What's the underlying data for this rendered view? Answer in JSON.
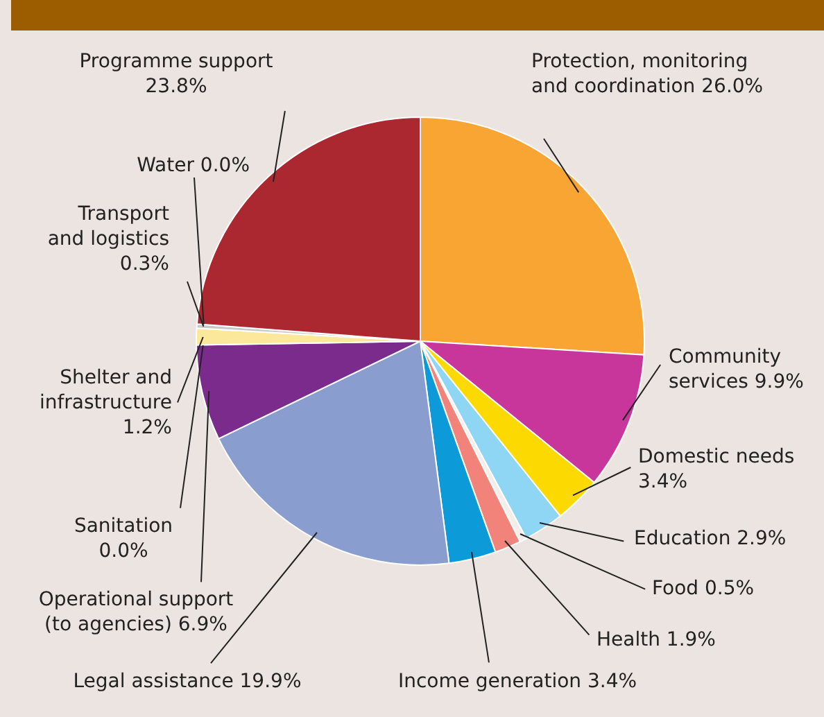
{
  "chart_data": {
    "type": "pie",
    "categories": [
      "Protection, monitoring and coordination",
      "Community services",
      "Domestic needs",
      "Education",
      "Food",
      "Health",
      "Income generation",
      "Legal assistance",
      "Operational support (to agencies)",
      "Sanitation",
      "Shelter and infrastructure",
      "Transport and logistics",
      "Water",
      "Programme support"
    ],
    "values": [
      26.0,
      9.9,
      3.4,
      2.9,
      0.5,
      1.9,
      3.4,
      19.9,
      6.9,
      0.0,
      1.2,
      0.3,
      0.0,
      23.8
    ],
    "value_labels": [
      "26.0%",
      "9.9%",
      "3.4%",
      "2.9%",
      "0.5%",
      "1.9%",
      "3.4%",
      "19.9%",
      "6.9%",
      "0.0%",
      "1.2%",
      "0.3%",
      "0.0%",
      "23.8%"
    ],
    "colors": [
      "#f9a533",
      "#c8359b",
      "#fcd900",
      "#8fd6f4",
      "#f4eeea",
      "#f2837a",
      "#0d9ad8",
      "#8a9dcf",
      "#7b2b8c",
      "#999999",
      "#fbe89a",
      "#c8c8c8",
      "#888888",
      "#ab2830"
    ],
    "legend": false
  }
}
